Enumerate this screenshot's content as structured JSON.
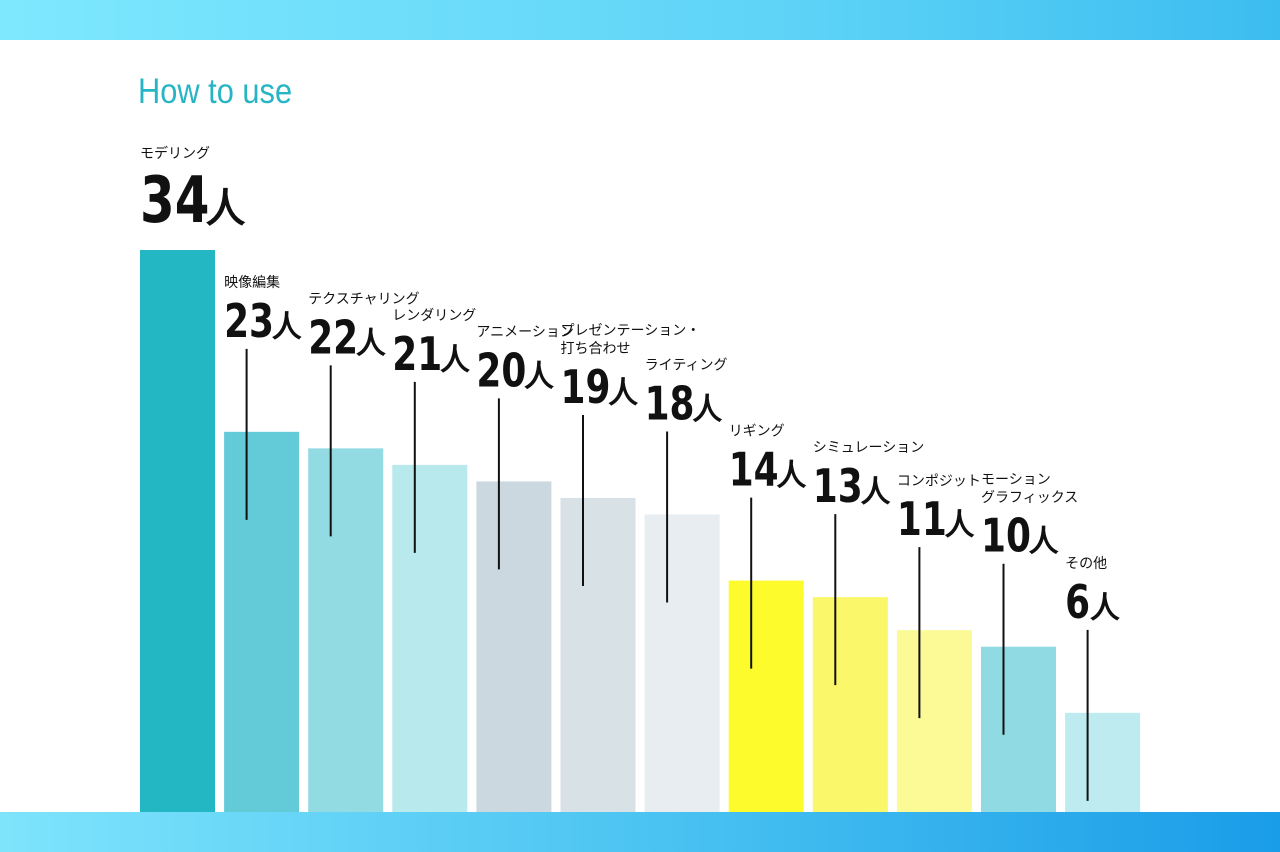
{
  "title": "How to use",
  "chart_data": {
    "type": "bar",
    "unit": "人",
    "categories": [
      [
        "モデリング"
      ],
      [
        "映像編集"
      ],
      [
        "テクスチャリング"
      ],
      [
        "レンダリング"
      ],
      [
        "アニメーション"
      ],
      [
        "プレゼンテーション・",
        "打ち合わせ"
      ],
      [
        "ライティング"
      ],
      [
        "リギング"
      ],
      [
        "シミュレーション"
      ],
      [
        "コンポジット"
      ],
      [
        "モーション",
        "グラフィックス"
      ],
      [
        "その他"
      ]
    ],
    "values": [
      34,
      23,
      22,
      21,
      20,
      19,
      18,
      14,
      13,
      11,
      10,
      6
    ],
    "colors": [
      "#23b6c3",
      "#63cbd8",
      "#92dbe3",
      "#b7e9ed",
      "#ccd8df",
      "#d8e1e6",
      "#e7edf0",
      "#fdfb2c",
      "#fbf76a",
      "#fcfa96",
      "#90dbe3",
      "#bdebef"
    ],
    "ylim": [
      0,
      34
    ]
  }
}
